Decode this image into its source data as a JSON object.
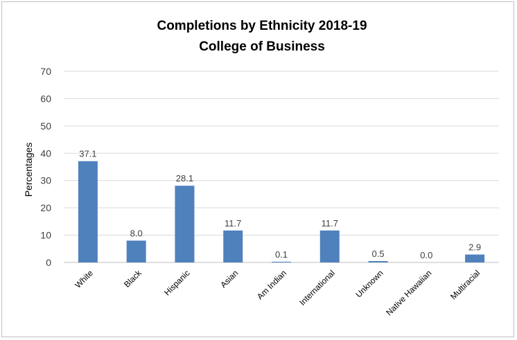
{
  "chart_data": {
    "type": "bar",
    "title": "Completions by Ethnicity 2018-19",
    "subtitle": "College of Business",
    "xlabel": "",
    "ylabel": "Percentages",
    "ylim": [
      0,
      70
    ],
    "yticks": [
      0,
      10,
      20,
      30,
      40,
      50,
      60,
      70
    ],
    "grid": true,
    "categories": [
      "White",
      "Black",
      "Hispanic",
      "Asian",
      "Am Indian",
      "International",
      "Unknown",
      "Native Hawaiian",
      "Multiracial"
    ],
    "values": [
      37.1,
      8.0,
      28.1,
      11.7,
      0.1,
      11.7,
      0.5,
      0.0,
      2.9
    ],
    "data_labels": [
      "37.1",
      "8.0",
      "28.1",
      "11.7",
      "0.1",
      "11.7",
      "0.5",
      "0.0",
      "2.9"
    ],
    "bar_color": "#4f81bd",
    "grid_color": "#d9d9d9"
  }
}
